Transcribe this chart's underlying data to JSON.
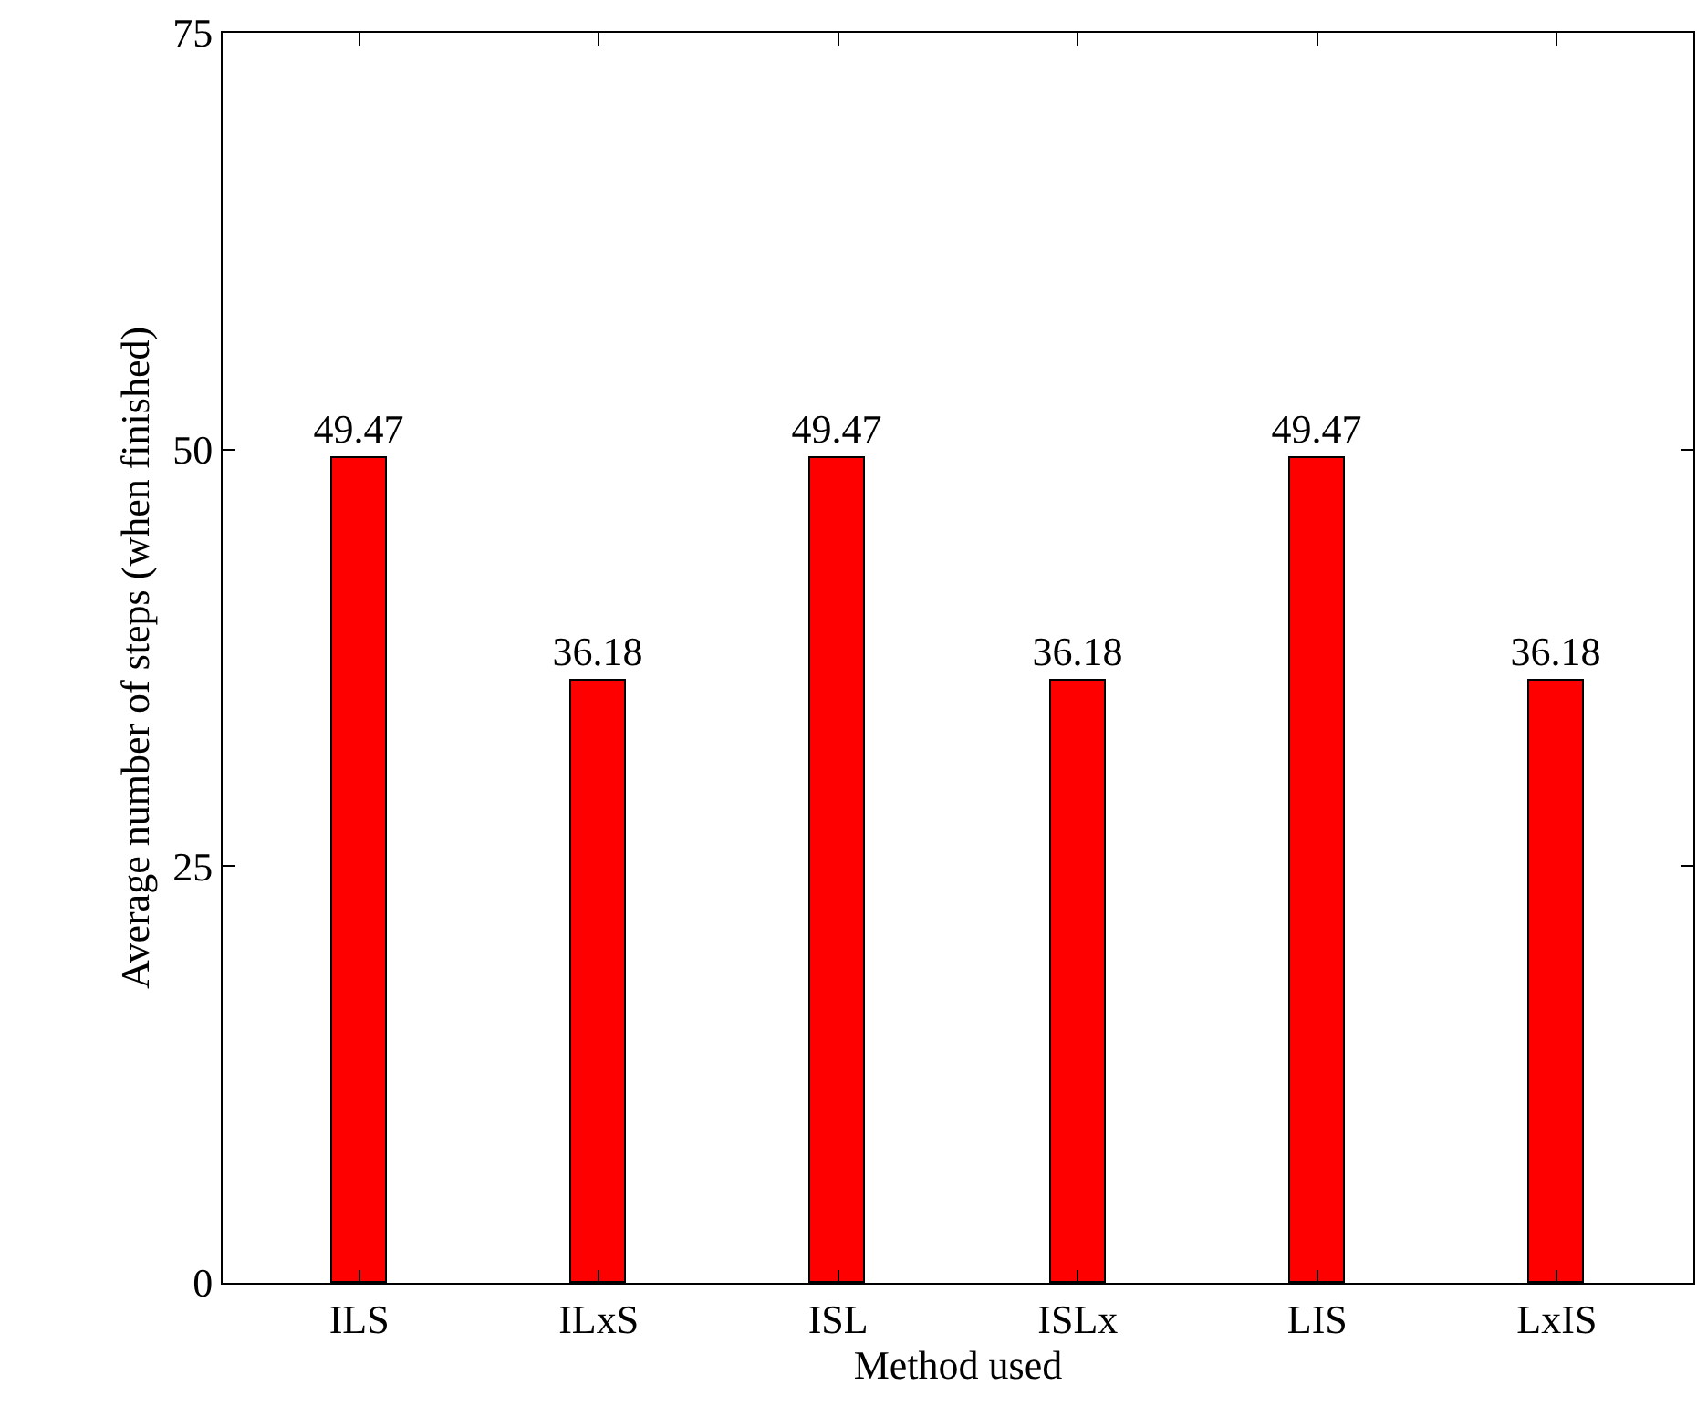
{
  "chart_data": {
    "type": "bar",
    "xlabel": "Method used",
    "ylabel": "Average number of steps (when finished)",
    "categories": [
      "ILS",
      "ILxS",
      "ISL",
      "ISLx",
      "LIS",
      "LxIS"
    ],
    "values": [
      49.47,
      36.18,
      49.47,
      36.18,
      49.47,
      36.18
    ],
    "color": "#ff0000",
    "ylim": [
      0,
      75
    ],
    "yticks": [
      0,
      25,
      50,
      75
    ],
    "data_labels": true
  }
}
